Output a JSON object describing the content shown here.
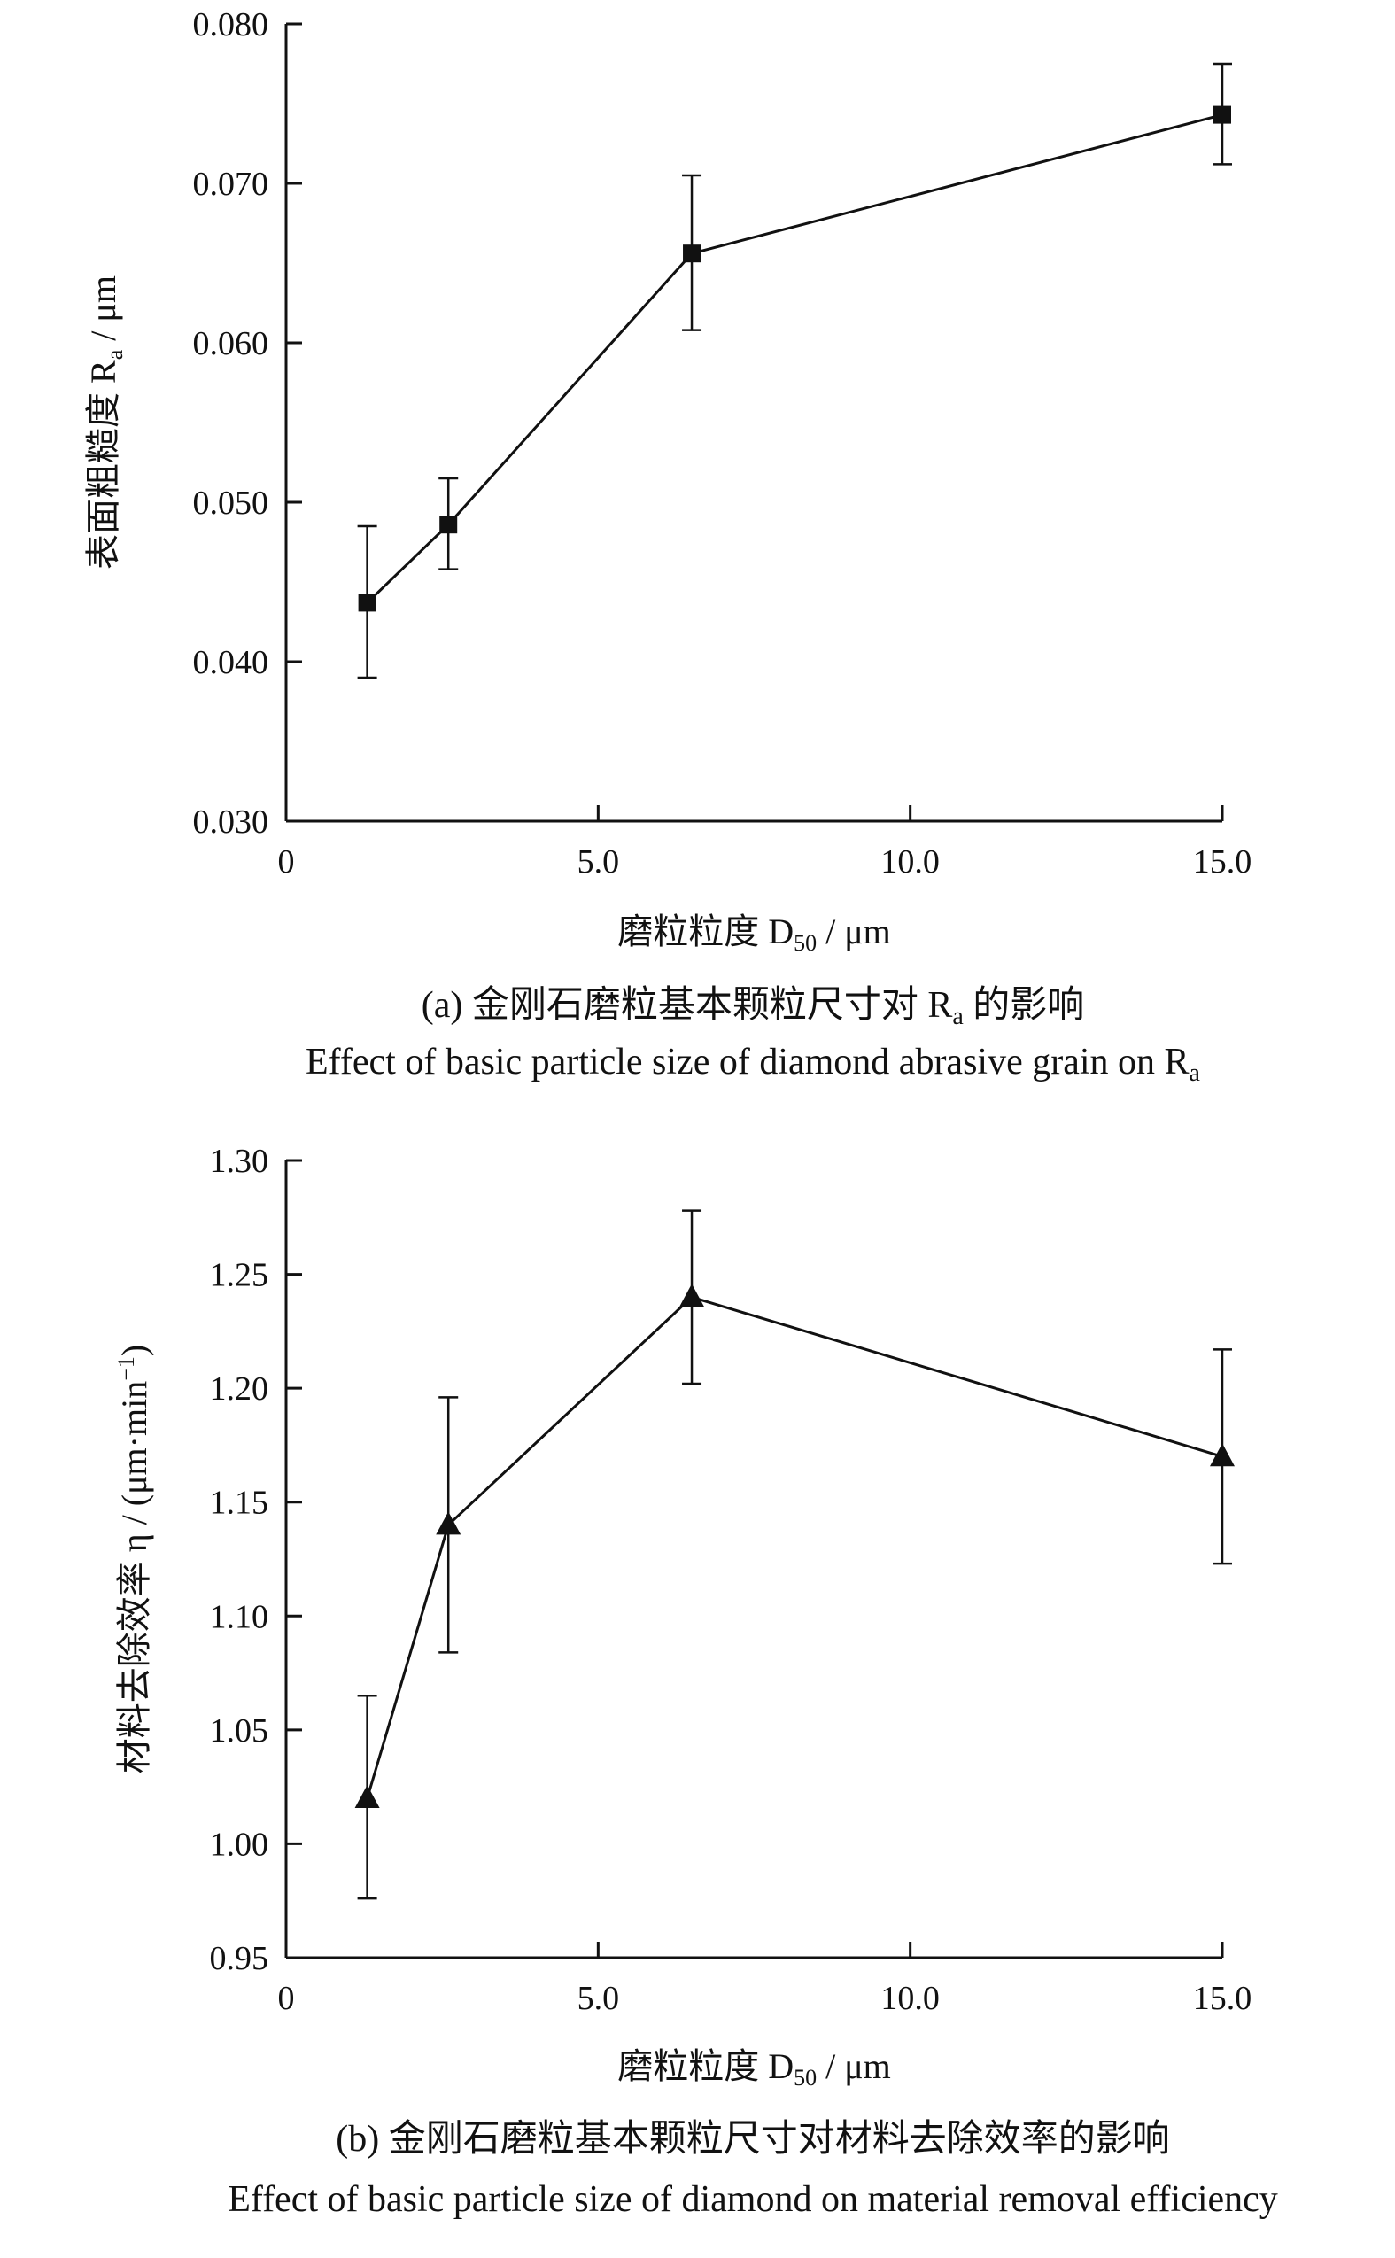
{
  "chart_data": [
    {
      "type": "line",
      "panel": "a",
      "caption_cn": "(a) 金刚石磨粒基本颗粒尺寸对 R",
      "caption_cn_sub": "a",
      "caption_cn_tail": " 的影响",
      "caption_en": "Effect of basic particle size of diamond abrasive grain on R",
      "caption_en_sub": "a",
      "xlabel": "磨粒粒度 D",
      "xlabel_sub": "50",
      "xlabel_unit": " / μm",
      "ylabel": "表面粗糙度 R",
      "ylabel_sub": "a",
      "ylabel_unit": " / μm",
      "xlim": [
        0,
        15.0
      ],
      "ylim": [
        0.03,
        0.08
      ],
      "xticks": [
        0,
        5.0,
        10.0,
        15.0
      ],
      "xtick_labels": [
        "0",
        "5.0",
        "10.0",
        "15.0"
      ],
      "yticks": [
        0.03,
        0.04,
        0.05,
        0.06,
        0.07,
        0.08
      ],
      "ytick_labels": [
        "0.030",
        "0.040",
        "0.050",
        "0.060",
        "0.070",
        "0.080"
      ],
      "marker": "square",
      "series": [
        {
          "x": [
            1.3,
            2.6,
            6.5,
            15.0
          ],
          "y": [
            0.0437,
            0.0486,
            0.0656,
            0.0743
          ],
          "err_low": [
            0.039,
            0.0458,
            0.0608,
            0.0712
          ],
          "err_high": [
            0.0485,
            0.0515,
            0.0705,
            0.0775
          ]
        }
      ]
    },
    {
      "type": "line",
      "panel": "b",
      "caption_cn": "(b) 金刚石磨粒基本颗粒尺寸对材料去除效率的影响",
      "caption_en": "Effect of basic particle size of diamond on material removal efficiency",
      "xlabel": "磨粒粒度 D",
      "xlabel_sub": "50",
      "xlabel_unit": " / μm",
      "ylabel": "材料去除效率 η / (μm·min",
      "ylabel_sup": "−1",
      "ylabel_tail": ")",
      "xlim": [
        0,
        15.0
      ],
      "ylim": [
        0.95,
        1.3
      ],
      "xticks": [
        0,
        5.0,
        10.0,
        15.0
      ],
      "xtick_labels": [
        "0",
        "5.0",
        "10.0",
        "15.0"
      ],
      "yticks": [
        0.95,
        1.0,
        1.05,
        1.1,
        1.15,
        1.2,
        1.25,
        1.3
      ],
      "ytick_labels": [
        "0.95",
        "1.00",
        "1.05",
        "1.10",
        "1.15",
        "1.20",
        "1.25",
        "1.30"
      ],
      "marker": "triangle",
      "series": [
        {
          "x": [
            1.3,
            2.6,
            6.5,
            15.0
          ],
          "y": [
            1.02,
            1.14,
            1.24,
            1.17
          ],
          "err_low": [
            0.976,
            1.084,
            1.202,
            1.123
          ],
          "err_high": [
            1.065,
            1.196,
            1.278,
            1.217
          ]
        }
      ]
    }
  ]
}
